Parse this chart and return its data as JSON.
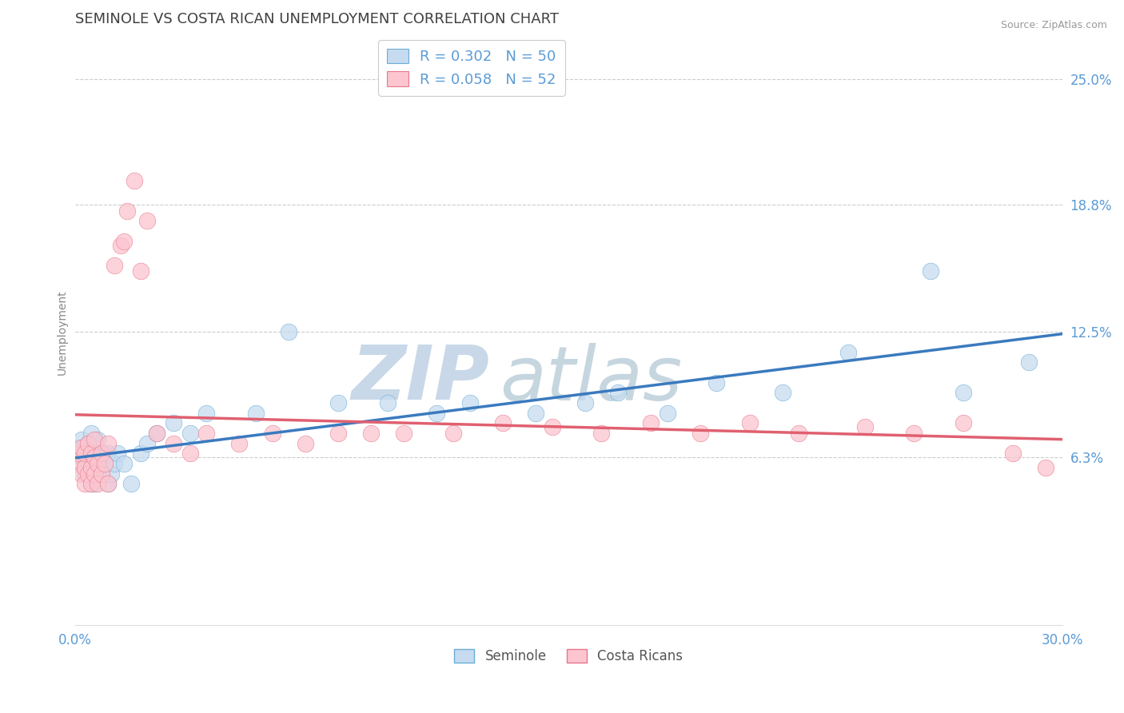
{
  "title": "SEMINOLE VS COSTA RICAN UNEMPLOYMENT CORRELATION CHART",
  "source": "Source: ZipAtlas.com",
  "ylabel": "Unemployment",
  "xlim": [
    0.0,
    0.3
  ],
  "ylim": [
    -0.02,
    0.27
  ],
  "yticks": [
    0.063,
    0.125,
    0.188,
    0.25
  ],
  "ytick_labels": [
    "6.3%",
    "12.5%",
    "18.8%",
    "25.0%"
  ],
  "xticks": [
    0.0,
    0.3
  ],
  "xtick_labels": [
    "0.0%",
    "30.0%"
  ],
  "seminole_color": "#6baed6",
  "seminole_fill": "#c6dbef",
  "costa_rican_color": "#e8778a",
  "costa_rican_fill": "#fcc5cf",
  "R_seminole": 0.302,
  "N_seminole": 50,
  "R_costa": 0.058,
  "N_costa": 52,
  "background_color": "#ffffff",
  "grid_color": "#cccccc",
  "watermark_zip": "ZIP",
  "watermark_atlas": "atlas",
  "watermark_color": "#c8d8e8",
  "title_color": "#404040",
  "label_color": "#5b9bd5",
  "trend_blue": "#3a7abf",
  "trend_pink": "#e06070",
  "seminole_x": [
    0.001,
    0.002,
    0.002,
    0.003,
    0.003,
    0.003,
    0.004,
    0.004,
    0.005,
    0.005,
    0.005,
    0.005,
    0.006,
    0.006,
    0.006,
    0.007,
    0.007,
    0.007,
    0.008,
    0.008,
    0.009,
    0.01,
    0.01,
    0.011,
    0.012,
    0.013,
    0.015,
    0.017,
    0.02,
    0.022,
    0.025,
    0.03,
    0.035,
    0.04,
    0.055,
    0.065,
    0.08,
    0.095,
    0.11,
    0.12,
    0.14,
    0.155,
    0.165,
    0.18,
    0.195,
    0.215,
    0.235,
    0.26,
    0.27,
    0.29
  ],
  "seminole_y": [
    0.068,
    0.063,
    0.072,
    0.055,
    0.06,
    0.065,
    0.058,
    0.07,
    0.05,
    0.055,
    0.065,
    0.075,
    0.05,
    0.06,
    0.07,
    0.055,
    0.065,
    0.072,
    0.055,
    0.063,
    0.06,
    0.05,
    0.065,
    0.055,
    0.06,
    0.065,
    0.06,
    0.05,
    0.065,
    0.07,
    0.075,
    0.08,
    0.075,
    0.085,
    0.085,
    0.125,
    0.09,
    0.09,
    0.085,
    0.09,
    0.085,
    0.09,
    0.095,
    0.085,
    0.1,
    0.095,
    0.115,
    0.155,
    0.095,
    0.11
  ],
  "costa_x": [
    0.001,
    0.001,
    0.002,
    0.002,
    0.003,
    0.003,
    0.003,
    0.004,
    0.004,
    0.005,
    0.005,
    0.005,
    0.006,
    0.006,
    0.006,
    0.007,
    0.007,
    0.008,
    0.008,
    0.009,
    0.01,
    0.01,
    0.012,
    0.014,
    0.016,
    0.018,
    0.02,
    0.025,
    0.03,
    0.035,
    0.04,
    0.05,
    0.06,
    0.07,
    0.08,
    0.09,
    0.1,
    0.115,
    0.13,
    0.145,
    0.16,
    0.175,
    0.19,
    0.205,
    0.22,
    0.24,
    0.255,
    0.27,
    0.285,
    0.295,
    0.015,
    0.022
  ],
  "costa_y": [
    0.06,
    0.065,
    0.055,
    0.068,
    0.05,
    0.058,
    0.065,
    0.055,
    0.07,
    0.05,
    0.058,
    0.065,
    0.055,
    0.063,
    0.072,
    0.05,
    0.06,
    0.055,
    0.065,
    0.06,
    0.05,
    0.07,
    0.158,
    0.168,
    0.185,
    0.2,
    0.155,
    0.075,
    0.07,
    0.065,
    0.075,
    0.07,
    0.075,
    0.07,
    0.075,
    0.075,
    0.075,
    0.075,
    0.08,
    0.078,
    0.075,
    0.08,
    0.075,
    0.08,
    0.075,
    0.078,
    0.075,
    0.08,
    0.065,
    0.058,
    0.17,
    0.18
  ]
}
